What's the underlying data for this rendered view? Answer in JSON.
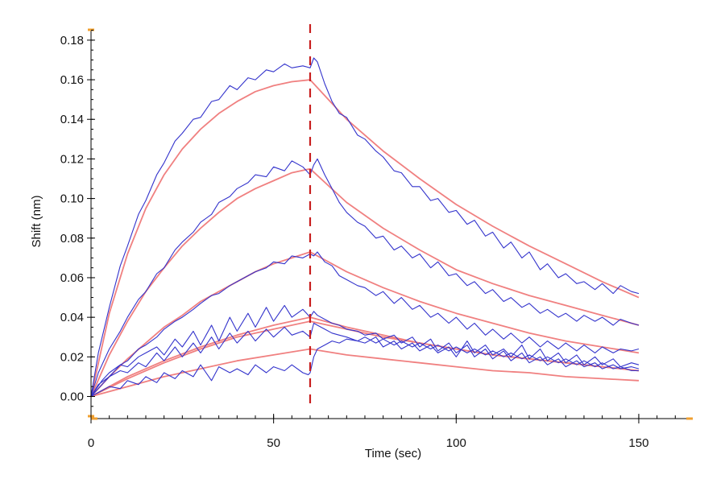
{
  "chart_data": {
    "type": "line",
    "title": "",
    "xlabel": "Time (sec)",
    "ylabel": "Shift (nm)",
    "xlim": [
      0,
      165
    ],
    "ylim": [
      -0.01,
      0.185
    ],
    "xticks": [
      0,
      50,
      100,
      150
    ],
    "xtick_labels": [
      "0",
      "50",
      "100",
      "150"
    ],
    "yticks": [
      0.0,
      0.02,
      0.04,
      0.06,
      0.08,
      0.1,
      0.12,
      0.14,
      0.16,
      0.18
    ],
    "ytick_labels": [
      "0.00",
      "0.02",
      "0.04",
      "0.06",
      "0.08",
      "0.10",
      "0.12",
      "0.14",
      "0.16",
      "0.18"
    ],
    "grid": false,
    "legend": "none",
    "association_end_marker_x": 60,
    "colors": {
      "measured": "#3333cc",
      "fit": "#f08080",
      "marker": "#c81e1e",
      "axis": "#000000",
      "axis_end_marker": "#f0a030"
    },
    "series": [
      {
        "kind": "fit",
        "x": [
          0,
          5,
          10,
          15,
          20,
          25,
          30,
          35,
          40,
          45,
          50,
          55,
          60,
          70,
          80,
          90,
          100,
          110,
          120,
          130,
          140,
          150
        ],
        "values": [
          0.0,
          0.042,
          0.072,
          0.095,
          0.112,
          0.125,
          0.135,
          0.143,
          0.149,
          0.154,
          0.157,
          0.159,
          0.16,
          0.14,
          0.124,
          0.11,
          0.097,
          0.086,
          0.076,
          0.067,
          0.058,
          0.05
        ]
      },
      {
        "kind": "fit",
        "x": [
          0,
          5,
          10,
          15,
          20,
          25,
          30,
          35,
          40,
          45,
          50,
          55,
          60,
          70,
          80,
          90,
          100,
          110,
          120,
          130,
          140,
          150
        ],
        "values": [
          0.0,
          0.021,
          0.038,
          0.053,
          0.065,
          0.076,
          0.085,
          0.093,
          0.1,
          0.105,
          0.109,
          0.113,
          0.115,
          0.098,
          0.085,
          0.074,
          0.064,
          0.057,
          0.051,
          0.046,
          0.041,
          0.036
        ]
      },
      {
        "kind": "fit",
        "x": [
          0,
          5,
          10,
          15,
          20,
          25,
          30,
          35,
          40,
          45,
          50,
          55,
          60,
          70,
          80,
          90,
          100,
          110,
          120,
          130,
          140,
          150
        ],
        "values": [
          0.0,
          0.01,
          0.019,
          0.027,
          0.035,
          0.041,
          0.048,
          0.053,
          0.058,
          0.063,
          0.067,
          0.07,
          0.073,
          0.063,
          0.055,
          0.048,
          0.042,
          0.037,
          0.032,
          0.028,
          0.025,
          0.022
        ]
      },
      {
        "kind": "fit",
        "x": [
          0,
          10,
          20,
          30,
          40,
          50,
          60,
          70,
          80,
          90,
          100,
          110,
          120,
          130,
          140,
          150
        ],
        "values": [
          0.0,
          0.01,
          0.018,
          0.025,
          0.031,
          0.036,
          0.04,
          0.035,
          0.031,
          0.027,
          0.024,
          0.021,
          0.019,
          0.017,
          0.015,
          0.013
        ]
      },
      {
        "kind": "fit",
        "x": [
          0,
          10,
          20,
          30,
          40,
          50,
          60,
          70,
          80,
          90,
          100,
          110,
          120,
          130,
          140,
          150
        ],
        "values": [
          0.0,
          0.009,
          0.017,
          0.024,
          0.03,
          0.034,
          0.038,
          0.034,
          0.03,
          0.027,
          0.024,
          0.021,
          0.019,
          0.017,
          0.015,
          0.013
        ]
      },
      {
        "kind": "fit",
        "x": [
          0,
          10,
          20,
          30,
          40,
          50,
          60,
          70,
          80,
          90,
          100,
          110,
          120,
          130,
          140,
          150
        ],
        "values": [
          0.0,
          0.005,
          0.01,
          0.014,
          0.018,
          0.021,
          0.024,
          0.021,
          0.019,
          0.017,
          0.015,
          0.013,
          0.012,
          0.01,
          0.009,
          0.008
        ]
      },
      {
        "kind": "measured",
        "x": [
          0,
          2,
          5,
          8,
          10,
          13,
          15,
          18,
          20,
          23,
          25,
          28,
          30,
          33,
          35,
          38,
          40,
          43,
          45,
          48,
          50,
          53,
          55,
          58,
          60,
          61,
          62,
          64,
          66,
          68,
          70,
          73,
          75,
          78,
          80,
          83,
          85,
          88,
          90,
          93,
          95,
          98,
          100,
          103,
          105,
          108,
          110,
          113,
          115,
          118,
          120,
          123,
          125,
          128,
          130,
          133,
          135,
          138,
          140,
          143,
          145,
          148,
          150
        ],
        "values": [
          0.0,
          0.022,
          0.045,
          0.066,
          0.076,
          0.092,
          0.099,
          0.112,
          0.118,
          0.129,
          0.133,
          0.14,
          0.141,
          0.149,
          0.15,
          0.157,
          0.155,
          0.161,
          0.16,
          0.165,
          0.164,
          0.168,
          0.166,
          0.167,
          0.166,
          0.171,
          0.169,
          0.158,
          0.149,
          0.143,
          0.141,
          0.132,
          0.13,
          0.124,
          0.121,
          0.114,
          0.113,
          0.106,
          0.106,
          0.099,
          0.1,
          0.093,
          0.094,
          0.087,
          0.089,
          0.081,
          0.083,
          0.075,
          0.078,
          0.07,
          0.073,
          0.064,
          0.067,
          0.06,
          0.062,
          0.057,
          0.058,
          0.054,
          0.057,
          0.052,
          0.056,
          0.053,
          0.052
        ]
      },
      {
        "kind": "measured",
        "x": [
          0,
          2,
          5,
          8,
          10,
          13,
          15,
          18,
          20,
          23,
          25,
          28,
          30,
          33,
          35,
          38,
          40,
          43,
          45,
          48,
          50,
          53,
          55,
          58,
          60,
          61,
          62,
          64,
          66,
          68,
          70,
          73,
          75,
          78,
          80,
          83,
          85,
          88,
          90,
          93,
          95,
          98,
          100,
          103,
          105,
          108,
          110,
          113,
          115,
          118,
          120,
          123,
          125,
          128,
          130,
          133,
          135,
          138,
          140,
          143,
          145,
          148,
          150
        ],
        "values": [
          0.0,
          0.012,
          0.024,
          0.033,
          0.04,
          0.049,
          0.053,
          0.062,
          0.065,
          0.074,
          0.078,
          0.083,
          0.088,
          0.092,
          0.098,
          0.101,
          0.105,
          0.108,
          0.112,
          0.111,
          0.116,
          0.114,
          0.119,
          0.116,
          0.112,
          0.117,
          0.12,
          0.112,
          0.105,
          0.098,
          0.093,
          0.088,
          0.086,
          0.08,
          0.081,
          0.074,
          0.076,
          0.07,
          0.072,
          0.065,
          0.068,
          0.061,
          0.062,
          0.056,
          0.058,
          0.052,
          0.054,
          0.048,
          0.05,
          0.045,
          0.047,
          0.042,
          0.044,
          0.04,
          0.042,
          0.038,
          0.041,
          0.038,
          0.04,
          0.036,
          0.039,
          0.037,
          0.036
        ]
      },
      {
        "kind": "measured",
        "x": [
          0,
          2,
          5,
          8,
          10,
          13,
          15,
          18,
          20,
          23,
          25,
          28,
          30,
          33,
          35,
          38,
          40,
          43,
          45,
          48,
          50,
          53,
          55,
          58,
          60,
          61,
          62,
          64,
          66,
          68,
          70,
          73,
          75,
          78,
          80,
          83,
          85,
          88,
          90,
          93,
          95,
          98,
          100,
          103,
          105,
          108,
          110,
          113,
          115,
          118,
          120,
          123,
          125,
          128,
          130,
          133,
          135,
          138,
          140,
          143,
          145,
          148,
          150
        ],
        "values": [
          0.0,
          0.006,
          0.01,
          0.016,
          0.018,
          0.024,
          0.026,
          0.03,
          0.034,
          0.038,
          0.04,
          0.044,
          0.047,
          0.051,
          0.052,
          0.056,
          0.058,
          0.061,
          0.063,
          0.065,
          0.068,
          0.067,
          0.071,
          0.07,
          0.072,
          0.071,
          0.073,
          0.068,
          0.066,
          0.061,
          0.059,
          0.056,
          0.055,
          0.051,
          0.053,
          0.047,
          0.05,
          0.044,
          0.046,
          0.04,
          0.042,
          0.037,
          0.04,
          0.034,
          0.037,
          0.031,
          0.034,
          0.029,
          0.032,
          0.027,
          0.03,
          0.025,
          0.028,
          0.024,
          0.027,
          0.023,
          0.026,
          0.022,
          0.025,
          0.022,
          0.024,
          0.023,
          0.024
        ]
      },
      {
        "kind": "measured",
        "x": [
          0,
          3,
          5,
          8,
          10,
          13,
          15,
          18,
          20,
          23,
          25,
          28,
          30,
          33,
          35,
          38,
          40,
          43,
          45,
          48,
          50,
          53,
          55,
          58,
          60,
          61,
          62,
          64,
          66,
          68,
          70,
          73,
          75,
          78,
          80,
          83,
          85,
          88,
          90,
          93,
          95,
          98,
          100,
          103,
          105,
          108,
          110,
          113,
          115,
          118,
          120,
          123,
          125,
          128,
          130,
          133,
          135,
          138,
          140,
          143,
          145,
          148,
          150
        ],
        "values": [
          0.0,
          0.008,
          0.012,
          0.016,
          0.015,
          0.02,
          0.022,
          0.025,
          0.021,
          0.029,
          0.025,
          0.033,
          0.026,
          0.036,
          0.028,
          0.04,
          0.033,
          0.042,
          0.035,
          0.045,
          0.038,
          0.046,
          0.04,
          0.044,
          0.04,
          0.043,
          0.041,
          0.039,
          0.037,
          0.036,
          0.034,
          0.033,
          0.031,
          0.032,
          0.029,
          0.031,
          0.027,
          0.03,
          0.025,
          0.029,
          0.023,
          0.027,
          0.022,
          0.026,
          0.02,
          0.024,
          0.019,
          0.023,
          0.018,
          0.022,
          0.017,
          0.02,
          0.016,
          0.019,
          0.015,
          0.018,
          0.015,
          0.017,
          0.014,
          0.016,
          0.014,
          0.015,
          0.014
        ]
      },
      {
        "kind": "measured",
        "x": [
          0,
          3,
          5,
          8,
          10,
          13,
          15,
          18,
          20,
          23,
          25,
          28,
          30,
          33,
          35,
          38,
          40,
          43,
          45,
          48,
          50,
          53,
          55,
          58,
          60,
          61,
          62,
          64,
          66,
          68,
          70,
          73,
          75,
          78,
          80,
          83,
          85,
          88,
          90,
          93,
          95,
          98,
          100,
          103,
          105,
          108,
          110,
          113,
          115,
          118,
          120,
          123,
          125,
          128,
          130,
          133,
          135,
          138,
          140,
          143,
          145,
          148,
          150
        ],
        "values": [
          0.0,
          0.006,
          0.01,
          0.013,
          0.012,
          0.017,
          0.015,
          0.022,
          0.018,
          0.025,
          0.02,
          0.027,
          0.022,
          0.03,
          0.024,
          0.032,
          0.027,
          0.033,
          0.028,
          0.034,
          0.03,
          0.035,
          0.031,
          0.033,
          0.03,
          0.037,
          0.036,
          0.034,
          0.032,
          0.031,
          0.03,
          0.028,
          0.027,
          0.03,
          0.025,
          0.028,
          0.024,
          0.027,
          0.023,
          0.026,
          0.022,
          0.025,
          0.02,
          0.028,
          0.022,
          0.026,
          0.021,
          0.024,
          0.02,
          0.026,
          0.019,
          0.024,
          0.018,
          0.022,
          0.017,
          0.021,
          0.016,
          0.02,
          0.016,
          0.019,
          0.015,
          0.017,
          0.016
        ]
      },
      {
        "kind": "measured",
        "x": [
          0,
          3,
          5,
          8,
          10,
          13,
          15,
          18,
          20,
          23,
          25,
          28,
          30,
          33,
          35,
          38,
          40,
          43,
          45,
          48,
          50,
          53,
          55,
          58,
          59.5,
          60,
          61,
          62,
          64,
          66,
          68,
          70,
          73,
          75,
          78,
          80,
          83,
          85,
          88,
          90,
          93,
          95,
          98,
          100,
          103,
          105,
          108,
          110,
          113,
          115,
          118,
          120,
          123,
          125,
          128,
          130,
          133,
          135,
          138,
          140,
          143,
          145,
          148,
          150
        ],
        "values": [
          0.0,
          0.003,
          0.005,
          0.004,
          0.008,
          0.006,
          0.01,
          0.007,
          0.012,
          0.009,
          0.013,
          0.01,
          0.016,
          0.008,
          0.015,
          0.012,
          0.014,
          0.011,
          0.016,
          0.012,
          0.015,
          0.013,
          0.016,
          0.012,
          0.011,
          0.012,
          0.02,
          0.024,
          0.026,
          0.028,
          0.027,
          0.029,
          0.028,
          0.03,
          0.027,
          0.029,
          0.026,
          0.028,
          0.025,
          0.027,
          0.024,
          0.026,
          0.023,
          0.025,
          0.022,
          0.024,
          0.021,
          0.023,
          0.02,
          0.022,
          0.019,
          0.021,
          0.018,
          0.02,
          0.017,
          0.019,
          0.016,
          0.018,
          0.015,
          0.017,
          0.014,
          0.015,
          0.013,
          0.013
        ]
      }
    ]
  }
}
